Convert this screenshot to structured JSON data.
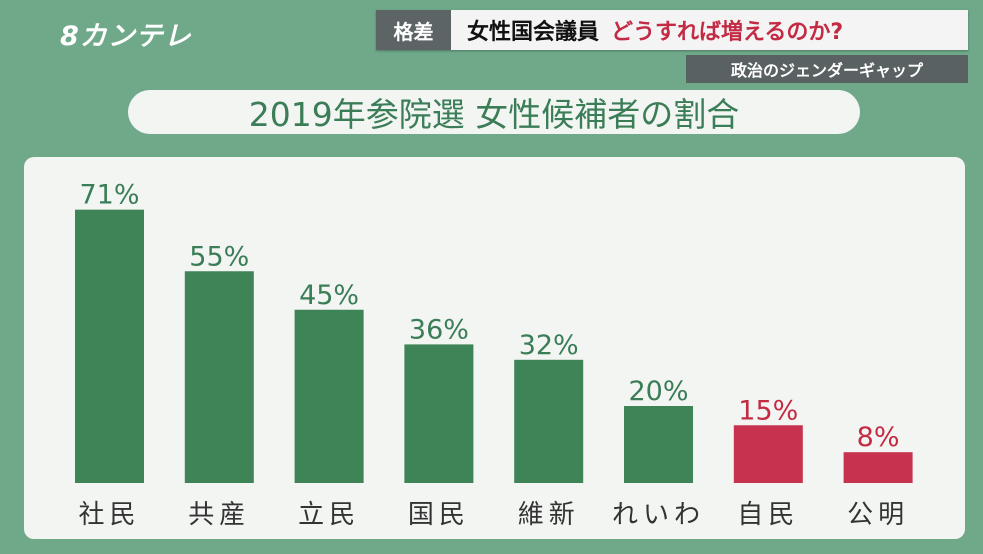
{
  "logo": {
    "text": "8カンテレ"
  },
  "caption": {
    "tag": "格差",
    "main_black": "女性国会議員",
    "main_red": "どうすれば増えるのか?",
    "sub": "政治のジェンダーギャップ"
  },
  "colors": {
    "background": "#6fa98a",
    "panel": "#f3f5f3",
    "bar_green": "#3f8456",
    "bar_red": "#c7334e",
    "label_green": "#3a7d57",
    "label_red": "#c32a43",
    "axis_text": "#333333"
  },
  "chart_data": {
    "type": "bar",
    "title": "2019年参院選 女性候補者の割合",
    "categories": [
      "社民",
      "共産",
      "立民",
      "国民",
      "維新",
      "れいわ",
      "自民",
      "公明"
    ],
    "values": [
      71,
      55,
      45,
      36,
      32,
      20,
      15,
      8
    ],
    "value_labels": [
      "71%",
      "55%",
      "45%",
      "36%",
      "32%",
      "20%",
      "15%",
      "8%"
    ],
    "highlight": [
      false,
      false,
      false,
      false,
      false,
      false,
      true,
      true
    ],
    "unit": "%",
    "grid": false,
    "legend": "none"
  }
}
